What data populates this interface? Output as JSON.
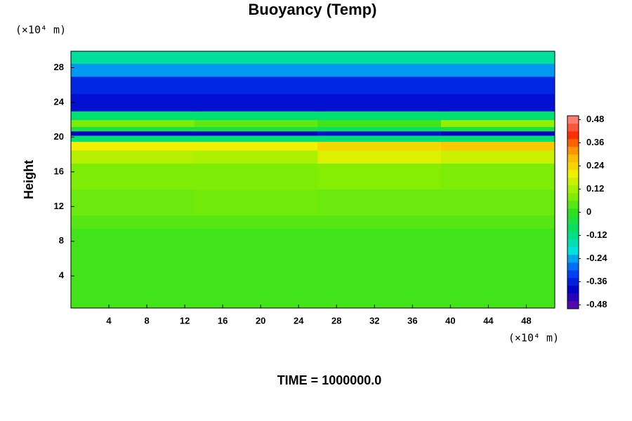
{
  "chart_data": {
    "type": "heatmap",
    "title": "Buoyancy (Temp)",
    "y_label": "Height",
    "y_unit_label": "(×10⁴ m)",
    "x_unit_label": "(×10⁴ m)",
    "footer": "TIME = 1000000.0",
    "xlim": [
      0,
      51
    ],
    "xticks": [
      4,
      8,
      12,
      16,
      20,
      24,
      28,
      32,
      36,
      40,
      44,
      48
    ],
    "ylim": [
      0.3,
      29.9
    ],
    "yticks": [
      4,
      8,
      12,
      16,
      20,
      24,
      28
    ],
    "x_edges": [
      0,
      13,
      26,
      39,
      51
    ],
    "y_edges": [
      0.3,
      9.5,
      11,
      14,
      17,
      18.5,
      19.5,
      20.2,
      20.7,
      21.2,
      22,
      23,
      25,
      27,
      28.5,
      29.9
    ],
    "z": [
      [
        0.02,
        0.02,
        0.02,
        0.02
      ],
      [
        0.04,
        0.04,
        0.04,
        0.04
      ],
      [
        0.06,
        0.07,
        0.06,
        0.06
      ],
      [
        0.08,
        0.08,
        0.09,
        0.08
      ],
      [
        0.14,
        0.13,
        0.18,
        0.16
      ],
      [
        0.2,
        0.2,
        0.24,
        0.26
      ],
      [
        -0.1,
        -0.1,
        -0.1,
        -0.1
      ],
      [
        -0.4,
        -0.4,
        -0.38,
        -0.4
      ],
      [
        -0.05,
        -0.05,
        -0.08,
        -0.05
      ],
      [
        0.08,
        0.05,
        0.02,
        0.1
      ],
      [
        -0.1,
        -0.1,
        -0.1,
        -0.1
      ],
      [
        -0.38,
        -0.38,
        -0.38,
        -0.38
      ],
      [
        -0.35,
        -0.35,
        -0.35,
        -0.35
      ],
      [
        -0.25,
        -0.25,
        -0.25,
        -0.25
      ],
      [
        -0.14,
        -0.14,
        -0.14,
        -0.14
      ]
    ],
    "clim": [
      -0.5,
      0.5
    ],
    "cticks": [
      0.48,
      0.36,
      0.24,
      0.12,
      0,
      -0.12,
      -0.24,
      -0.36,
      -0.48
    ],
    "colormap": [
      "#6a0aa8",
      "#0000c8",
      "#0050ff",
      "#00e0e0",
      "#00e070",
      "#30e020",
      "#90f000",
      "#f0f000",
      "#ffb000",
      "#ff3000",
      "#ff9090"
    ]
  }
}
